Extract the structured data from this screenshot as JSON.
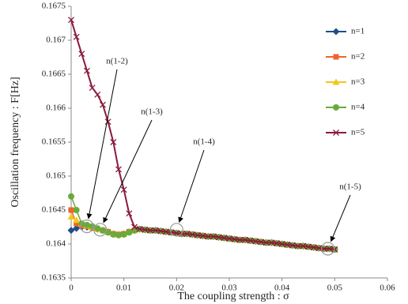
{
  "chart_data": {
    "type": "line",
    "xlabel": "The coupling strength : σ",
    "ylabel": "Oscillation frequency : F[Hz]",
    "xlim": [
      0,
      0.06
    ],
    "xticks": [
      0,
      0.01,
      0.02,
      0.03,
      0.04,
      0.05,
      0.06
    ],
    "ylim": [
      0.1635,
      0.1675
    ],
    "yticks": [
      0.1635,
      0.164,
      0.1645,
      0.165,
      0.1655,
      0.166,
      0.1665,
      0.167,
      0.1675
    ],
    "grid": false,
    "legend": "upper right",
    "x": [
      0,
      0.001,
      0.002,
      0.003,
      0.004,
      0.005,
      0.006,
      0.007,
      0.008,
      0.009,
      0.01,
      0.011,
      0.012,
      0.013,
      0.014,
      0.015,
      0.016,
      0.017,
      0.018,
      0.019,
      0.02,
      0.021,
      0.022,
      0.023,
      0.024,
      0.025,
      0.026,
      0.027,
      0.028,
      0.029,
      0.03,
      0.031,
      0.032,
      0.033,
      0.034,
      0.035,
      0.036,
      0.037,
      0.038,
      0.039,
      0.04,
      0.041,
      0.042,
      0.043,
      0.044,
      0.045,
      0.046,
      0.047,
      0.048,
      0.049,
      0.05
    ],
    "series": [
      {
        "name": "n=1",
        "color": "#1f4e8c",
        "marker": "diamond",
        "values": [
          0.1642,
          0.16423,
          0.16425,
          0.16425,
          0.16424,
          0.16422,
          0.1642,
          0.16418,
          0.16415,
          0.16414,
          0.16415,
          0.16418,
          0.1642,
          0.16422,
          0.16421,
          0.1642,
          0.1642,
          0.16419,
          0.16418,
          0.16417,
          0.16416,
          0.16415,
          0.16415,
          0.16414,
          0.16413,
          0.16412,
          0.16411,
          0.16411,
          0.1641,
          0.16409,
          0.16408,
          0.16407,
          0.16406,
          0.16406,
          0.16405,
          0.16404,
          0.16403,
          0.16402,
          0.16402,
          0.16401,
          0.164,
          0.16399,
          0.16398,
          0.16397,
          0.16397,
          0.16396,
          0.16395,
          0.16394,
          0.16393,
          0.16393,
          0.16392
        ]
      },
      {
        "name": "n=2",
        "color": "#f0642a",
        "marker": "square",
        "values": [
          0.1645,
          0.1643,
          0.16427,
          0.16426,
          0.16424,
          0.16422,
          0.1642,
          0.16418,
          0.16415,
          0.16414,
          0.16415,
          0.16418,
          0.1642,
          0.16422,
          0.16421,
          0.1642,
          0.1642,
          0.16419,
          0.16418,
          0.16417,
          0.16416,
          0.16415,
          0.16415,
          0.16414,
          0.16413,
          0.16412,
          0.16411,
          0.16411,
          0.1641,
          0.16409,
          0.16408,
          0.16407,
          0.16406,
          0.16406,
          0.16405,
          0.16404,
          0.16403,
          0.16402,
          0.16402,
          0.16401,
          0.164,
          0.16399,
          0.16398,
          0.16397,
          0.16397,
          0.16396,
          0.16395,
          0.16394,
          0.16393,
          0.16393,
          0.16392
        ]
      },
      {
        "name": "n=3",
        "color": "#f5c518",
        "marker": "triangle",
        "values": [
          0.1644,
          0.16435,
          0.1643,
          0.16427,
          0.16425,
          0.16422,
          0.1642,
          0.16418,
          0.16415,
          0.16414,
          0.16415,
          0.16418,
          0.1642,
          0.16422,
          0.16421,
          0.1642,
          0.1642,
          0.16419,
          0.16418,
          0.16417,
          0.16416,
          0.16415,
          0.16415,
          0.16414,
          0.16413,
          0.16412,
          0.16411,
          0.16411,
          0.1641,
          0.16409,
          0.16408,
          0.16407,
          0.16406,
          0.16406,
          0.16405,
          0.16404,
          0.16403,
          0.16402,
          0.16402,
          0.16401,
          0.164,
          0.16399,
          0.16398,
          0.16397,
          0.16397,
          0.16396,
          0.16395,
          0.16394,
          0.16393,
          0.16393,
          0.16392
        ]
      },
      {
        "name": "n=4",
        "color": "#6aaa3a",
        "marker": "circle",
        "values": [
          0.1647,
          0.1645,
          0.1643,
          0.16428,
          0.16426,
          0.16423,
          0.1642,
          0.16417,
          0.16414,
          0.16413,
          0.16414,
          0.16417,
          0.1642,
          0.16422,
          0.16421,
          0.1642,
          0.1642,
          0.16419,
          0.16418,
          0.16417,
          0.16416,
          0.16415,
          0.16415,
          0.16414,
          0.16413,
          0.16412,
          0.16411,
          0.16411,
          0.1641,
          0.16409,
          0.16408,
          0.16407,
          0.16406,
          0.16406,
          0.16405,
          0.16404,
          0.16403,
          0.16402,
          0.16402,
          0.16401,
          0.164,
          0.16399,
          0.16398,
          0.16397,
          0.16397,
          0.16396,
          0.16395,
          0.16394,
          0.16393,
          0.16393,
          0.16392
        ]
      },
      {
        "name": "n=5",
        "color": "#8b1a3a",
        "marker": "x",
        "values": [
          0.1673,
          0.16705,
          0.1668,
          0.16655,
          0.1663,
          0.1662,
          0.16605,
          0.1658,
          0.1655,
          0.1651,
          0.1648,
          0.16445,
          0.16425,
          0.16422,
          0.16421,
          0.1642,
          0.1642,
          0.16419,
          0.16418,
          0.16417,
          0.16416,
          0.16415,
          0.16415,
          0.16414,
          0.16413,
          0.16412,
          0.16411,
          0.16411,
          0.1641,
          0.16409,
          0.16408,
          0.16407,
          0.16406,
          0.16406,
          0.16405,
          0.16404,
          0.16403,
          0.16402,
          0.16402,
          0.16401,
          0.164,
          0.16399,
          0.16398,
          0.16397,
          0.16397,
          0.16396,
          0.16395,
          0.16394,
          0.16393,
          0.16393,
          0.16392
        ]
      }
    ],
    "annotations": [
      {
        "text": "n(1-2)",
        "x": 0.003,
        "y": 0.16426
      },
      {
        "text": "n(1-3)",
        "x": 0.0055,
        "y": 0.16421
      },
      {
        "text": "n(1-4)",
        "x": 0.02,
        "y": 0.16421
      },
      {
        "text": "n(1-5)",
        "x": 0.0487,
        "y": 0.16393
      }
    ]
  }
}
